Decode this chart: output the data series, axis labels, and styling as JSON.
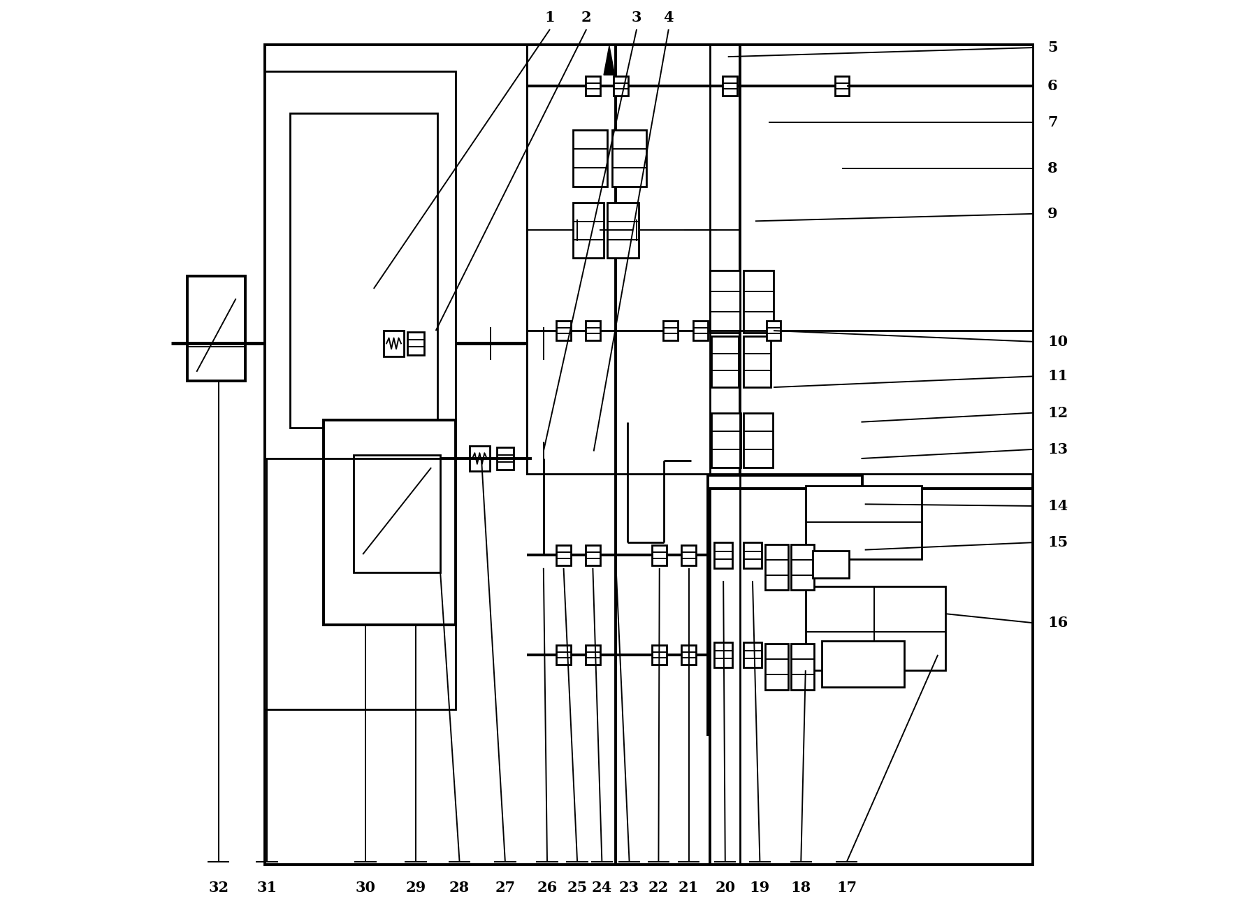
{
  "bg_color": "#ffffff",
  "lw_thick": 2.8,
  "lw_med": 2.0,
  "lw_thin": 1.4,
  "lw_shaft": 3.5,
  "fig_width": 17.96,
  "fig_height": 13.12,
  "labels_top": [
    [
      "1",
      0.415
    ],
    [
      "2",
      0.455
    ],
    [
      "3",
      0.51
    ],
    [
      "4",
      0.545
    ]
  ],
  "labels_right": [
    [
      "5",
      0.95
    ],
    [
      "6",
      0.908
    ],
    [
      "7",
      0.868
    ],
    [
      "8",
      0.818
    ],
    [
      "9",
      0.768
    ],
    [
      "10",
      0.628
    ],
    [
      "11",
      0.59
    ],
    [
      "12",
      0.55
    ],
    [
      "13",
      0.51
    ],
    [
      "14",
      0.448
    ],
    [
      "15",
      0.408
    ],
    [
      "16",
      0.32
    ]
  ],
  "labels_bottom": [
    [
      "32",
      0.052
    ],
    [
      "31",
      0.105
    ],
    [
      "30",
      0.213
    ],
    [
      "29",
      0.268
    ],
    [
      "28",
      0.316
    ],
    [
      "27",
      0.366
    ],
    [
      "26",
      0.412
    ],
    [
      "25",
      0.445
    ],
    [
      "24",
      0.472
    ],
    [
      "23",
      0.502
    ],
    [
      "22",
      0.534
    ],
    [
      "21",
      0.567
    ],
    [
      "20",
      0.607
    ],
    [
      "19",
      0.645
    ],
    [
      "18",
      0.69
    ],
    [
      "17",
      0.74
    ]
  ]
}
